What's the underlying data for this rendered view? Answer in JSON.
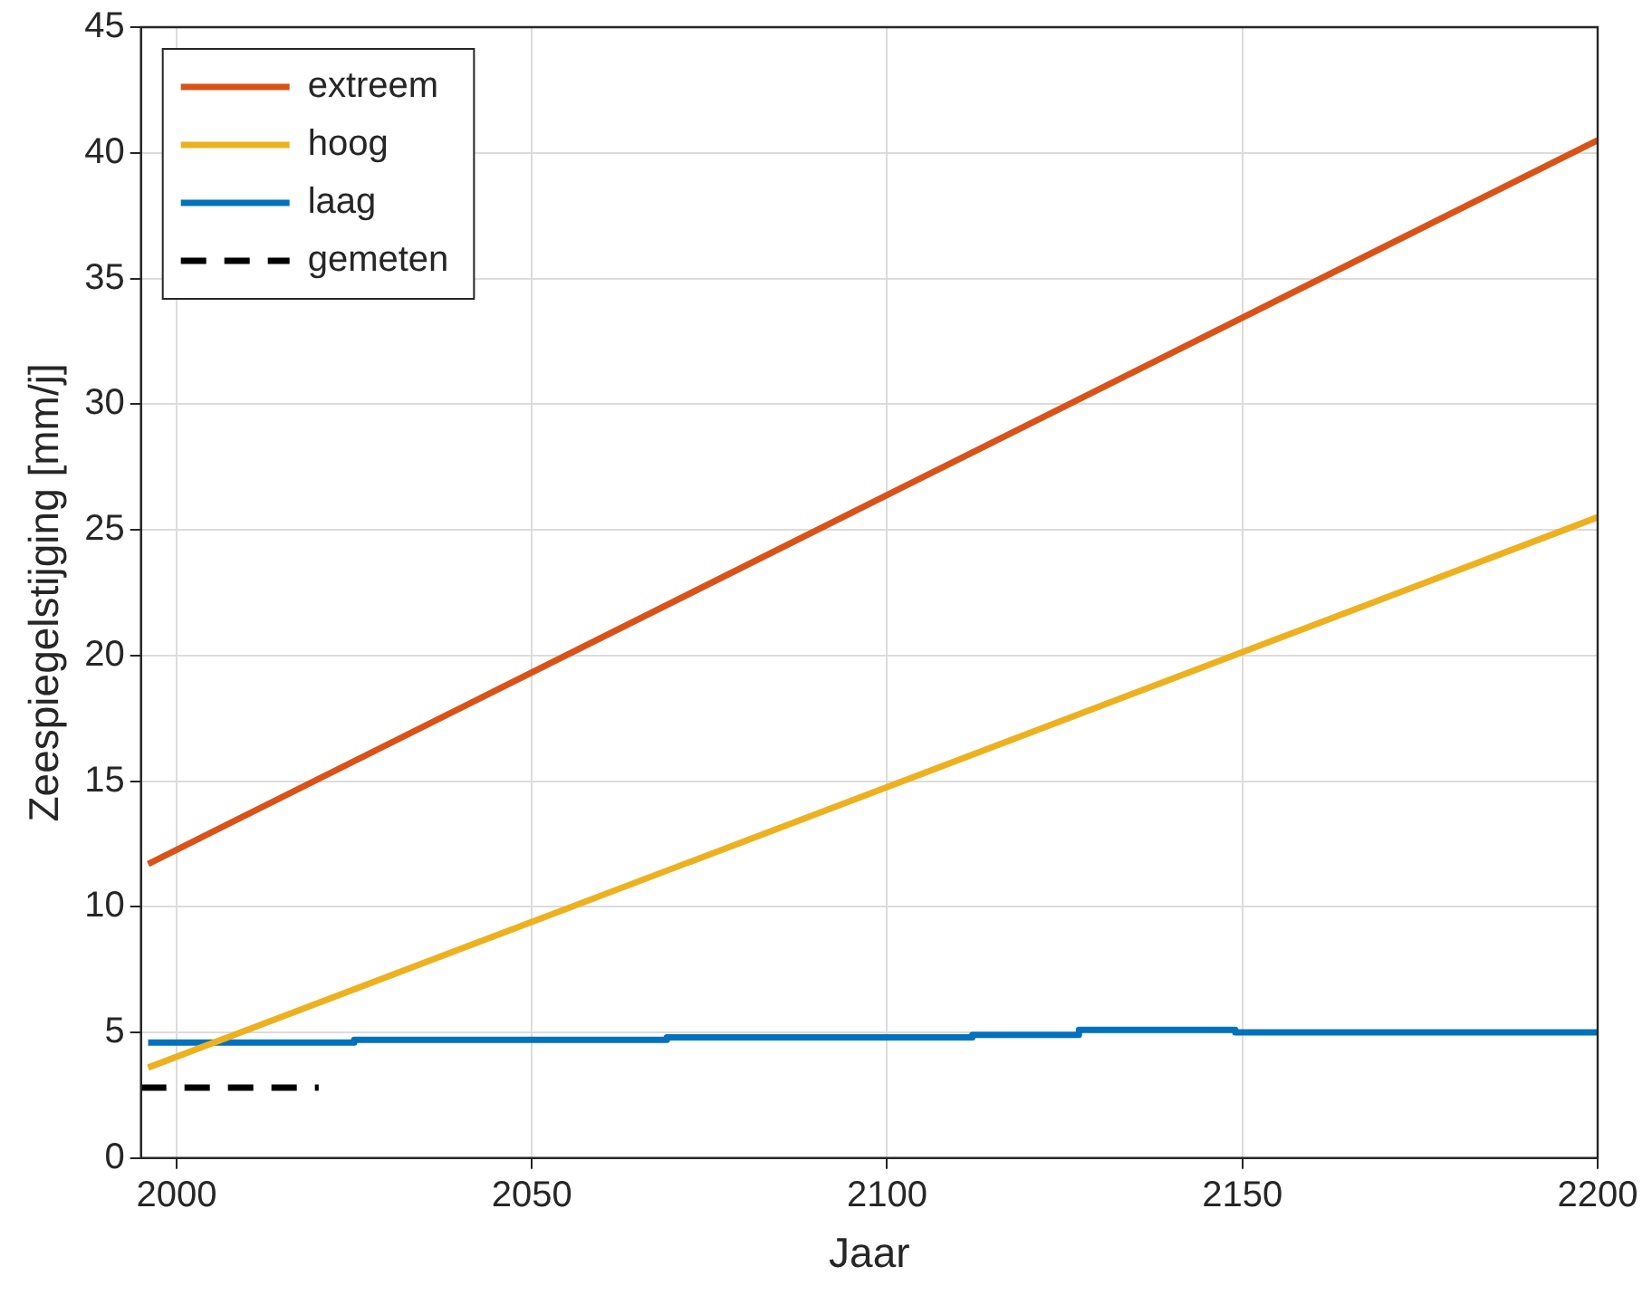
{
  "chart_data": {
    "type": "line",
    "xlabel": "Jaar",
    "ylabel": "Zeespiegelstijging [mm/j]",
    "xlim": [
      1995,
      2200
    ],
    "xticks": [
      2000,
      2050,
      2100,
      2150,
      2200
    ],
    "ylim": [
      0,
      45
    ],
    "yticks": [
      0,
      5,
      10,
      15,
      20,
      25,
      30,
      35,
      40,
      45
    ],
    "grid": true,
    "legend": "top left",
    "marker": "none",
    "series": [
      {
        "name": "extreem",
        "color": "#d95319",
        "x": [
          1996,
          2200
        ],
        "values": [
          11.7,
          40.5
        ]
      },
      {
        "name": "hoog",
        "color": "#edb120",
        "x": [
          1996,
          2200
        ],
        "values": [
          3.6,
          25.5
        ]
      },
      {
        "name": "laag",
        "color": "#0072bd",
        "x": [
          1996,
          2025,
          2025,
          2069,
          2069,
          2112,
          2112,
          2127,
          2127,
          2149,
          2149,
          2200
        ],
        "values": [
          4.6,
          4.6,
          4.7,
          4.7,
          4.8,
          4.8,
          4.9,
          4.9,
          5.1,
          5.1,
          5.0,
          5.0
        ]
      },
      {
        "name": "gemeten",
        "color": "#000000",
        "line_style": "dashed",
        "x": [
          1995,
          2020
        ],
        "values": [
          2.8,
          2.8
        ]
      }
    ]
  }
}
